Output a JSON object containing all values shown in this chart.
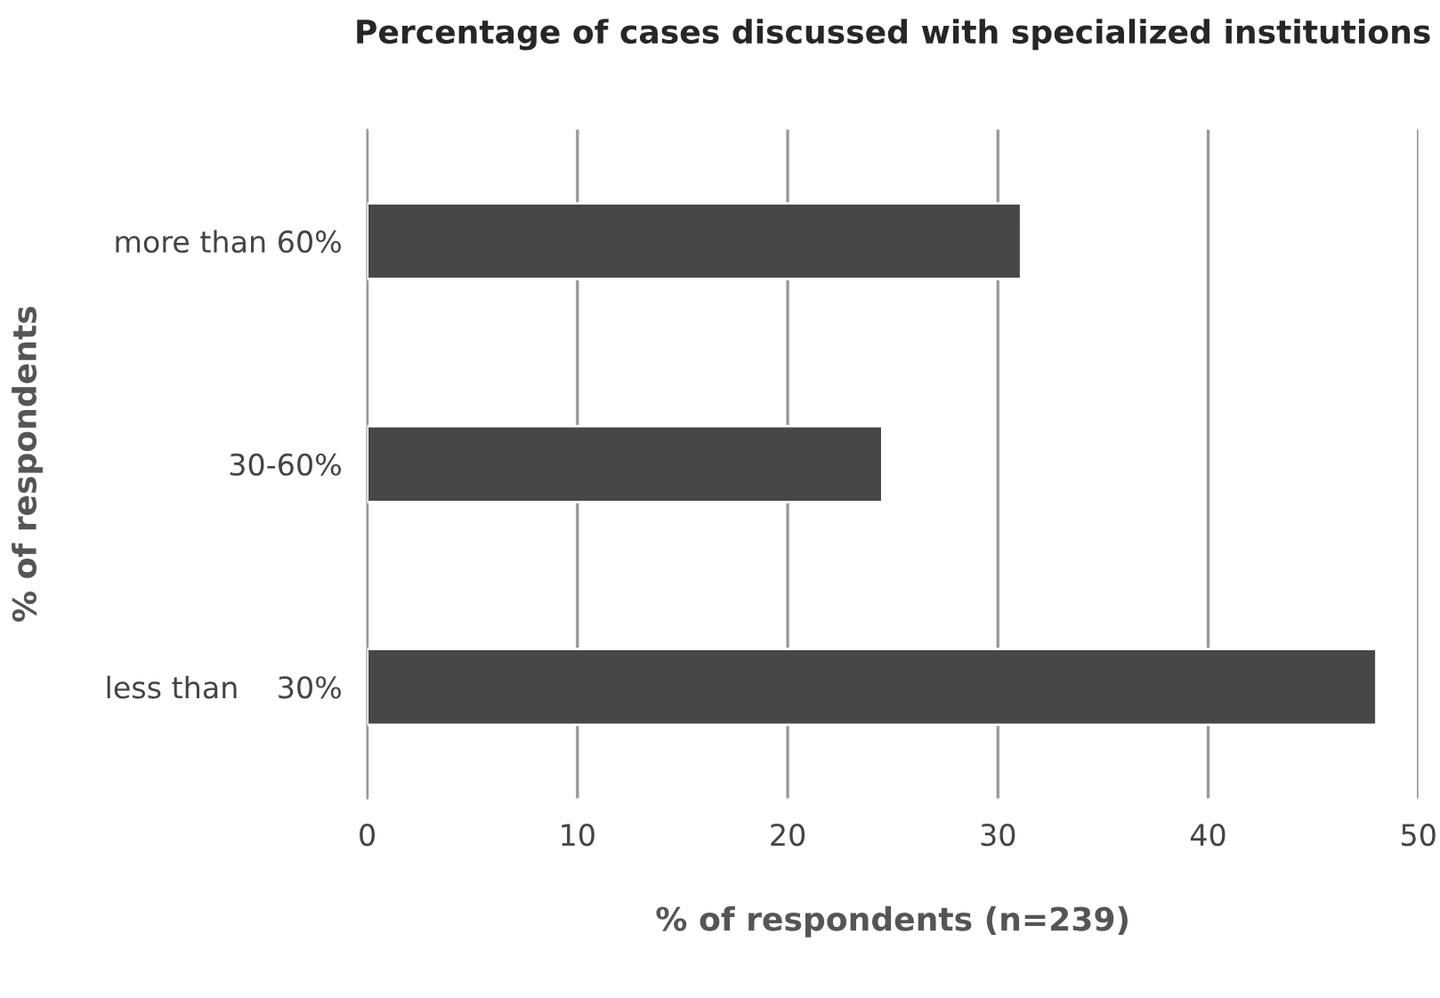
{
  "chart_data": {
    "type": "bar",
    "orientation": "horizontal",
    "title": "Percentage of cases discussed with specialized institutions",
    "xlabel": "% of respondents (n=239)",
    "ylabel": "% of respondents",
    "categories": [
      "more than 60%",
      "30-60%",
      "less than    30%"
    ],
    "values": [
      31.1,
      24.5,
      48.0
    ],
    "color": "#474747",
    "xlim": [
      0,
      50
    ],
    "xticks": [
      0,
      10,
      20,
      30,
      40,
      50
    ],
    "grid": "x",
    "legend": false
  }
}
